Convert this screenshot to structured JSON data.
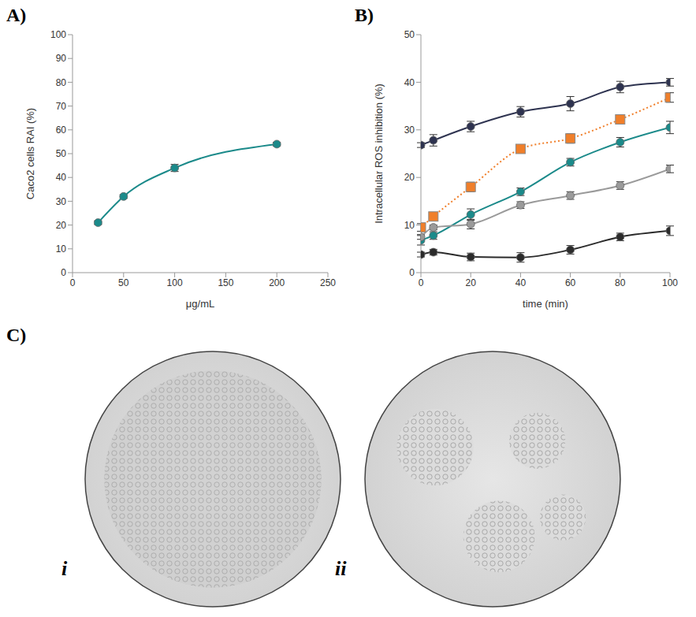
{
  "chart_data": [
    {
      "type": "line",
      "panel": "A)",
      "x_label": "μg/mL",
      "y_label": "Caco2 cells RAI (%)",
      "x": [
        25,
        50,
        100,
        200
      ],
      "series": [
        {
          "color": "#1b8a8a",
          "marker": "circle",
          "line_style": "solid",
          "values": [
            21,
            32,
            44,
            54
          ],
          "errors": [
            0.8,
            0.8,
            1.5,
            0.8
          ]
        }
      ],
      "xlim": [
        0,
        250
      ],
      "xticks": [
        0,
        50,
        100,
        150,
        200,
        250
      ],
      "ylim": [
        0,
        100
      ],
      "yticks": [
        0,
        10,
        20,
        30,
        40,
        50,
        60,
        70,
        80,
        90,
        100
      ],
      "grid": false
    },
    {
      "type": "line",
      "panel": "B)",
      "x_label": "time (min)",
      "y_label": "Intracellular ROS inhibition (%)",
      "x": [
        0,
        5,
        20,
        40,
        60,
        80,
        100
      ],
      "series": [
        {
          "color": "#2e3350",
          "marker": "circle",
          "line_style": "solid",
          "values": [
            26.8,
            27.8,
            30.7,
            33.8,
            35.5,
            39,
            40
          ],
          "errors": [
            0.5,
            1.2,
            1.1,
            1.1,
            1.5,
            1.2,
            0.8
          ]
        },
        {
          "color": "#f07f2a",
          "marker": "square",
          "line_style": "dotted",
          "values": [
            9.5,
            11.8,
            18,
            26,
            28.2,
            32.2,
            36.8
          ],
          "errors": [
            0.8,
            0.8,
            1,
            0.5,
            1,
            0.6,
            1
          ]
        },
        {
          "color": "#1b8a8a",
          "marker": "circle",
          "line_style": "solid",
          "values": [
            6.8,
            7.8,
            12.2,
            17,
            23.2,
            27.4,
            30.5
          ],
          "errors": [
            1,
            0.8,
            1.2,
            0.8,
            0.8,
            1,
            1.3
          ]
        },
        {
          "color": "#9a9a9a",
          "marker": "circle",
          "line_style": "solid",
          "values": [
            7.5,
            9.5,
            10.2,
            14.2,
            16.2,
            18.3,
            21.8
          ],
          "errors": [
            0.5,
            0.5,
            1,
            0.7,
            0.8,
            0.8,
            0.8
          ]
        },
        {
          "color": "#2b2b2b",
          "marker": "circle",
          "line_style": "solid",
          "values": [
            3.8,
            4.3,
            3.3,
            3.2,
            4.8,
            7.5,
            8.8
          ],
          "errors": [
            0.5,
            0.6,
            0.8,
            1,
            0.9,
            0.8,
            1
          ]
        }
      ],
      "xlim": [
        0,
        100
      ],
      "xticks": [
        0,
        20,
        40,
        60,
        80,
        100
      ],
      "ylim": [
        0,
        50
      ],
      "yticks": [
        0,
        10,
        20,
        30,
        40,
        50
      ],
      "grid": false
    }
  ],
  "images": {
    "panel": "C)",
    "labels": [
      "i",
      "ii"
    ]
  }
}
